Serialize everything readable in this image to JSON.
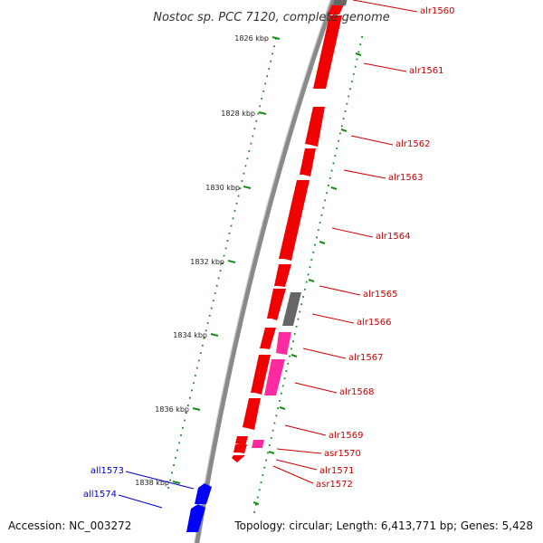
{
  "title": "Nostoc sp. PCC 7120, complete genome",
  "footer": {
    "accession": "Accession: NC_003272",
    "summary": "Topology: circular; Length: 6,413,771 bp; Genes: 5,428"
  },
  "colors": {
    "backbone": "#8a8a8a",
    "ticks": "#1a8a1a",
    "forward_gene": "#ff0000",
    "reverse_gene": "#0000ff",
    "small_rna_gene": "#ff2aa0",
    "other_feature": "#666666",
    "forward_label": "#cc0000",
    "reverse_label": "#0000cc"
  },
  "ticks": [
    {
      "label": "1826 kbp"
    },
    {
      "label": "1828 kbp"
    },
    {
      "label": "1830 kbp"
    },
    {
      "label": "1832 kbp"
    },
    {
      "label": "1834 kbp"
    },
    {
      "label": "1836 kbp"
    },
    {
      "label": "1838 kbp"
    }
  ],
  "genes": [
    {
      "name": "alr1560",
      "strand": "forward"
    },
    {
      "name": "alr1561",
      "strand": "forward"
    },
    {
      "name": "alr1562",
      "strand": "forward"
    },
    {
      "name": "alr1563",
      "strand": "forward"
    },
    {
      "name": "alr1564",
      "strand": "forward"
    },
    {
      "name": "alr1565",
      "strand": "forward"
    },
    {
      "name": "alr1566",
      "strand": "forward"
    },
    {
      "name": "alr1567",
      "strand": "forward"
    },
    {
      "name": "alr1568",
      "strand": "forward"
    },
    {
      "name": "alr1569",
      "strand": "forward"
    },
    {
      "name": "asr1570",
      "strand": "forward"
    },
    {
      "name": "alr1571",
      "strand": "forward"
    },
    {
      "name": "asr1572",
      "strand": "forward"
    },
    {
      "name": "all1573",
      "strand": "reverse"
    },
    {
      "name": "all1574",
      "strand": "reverse"
    }
  ]
}
